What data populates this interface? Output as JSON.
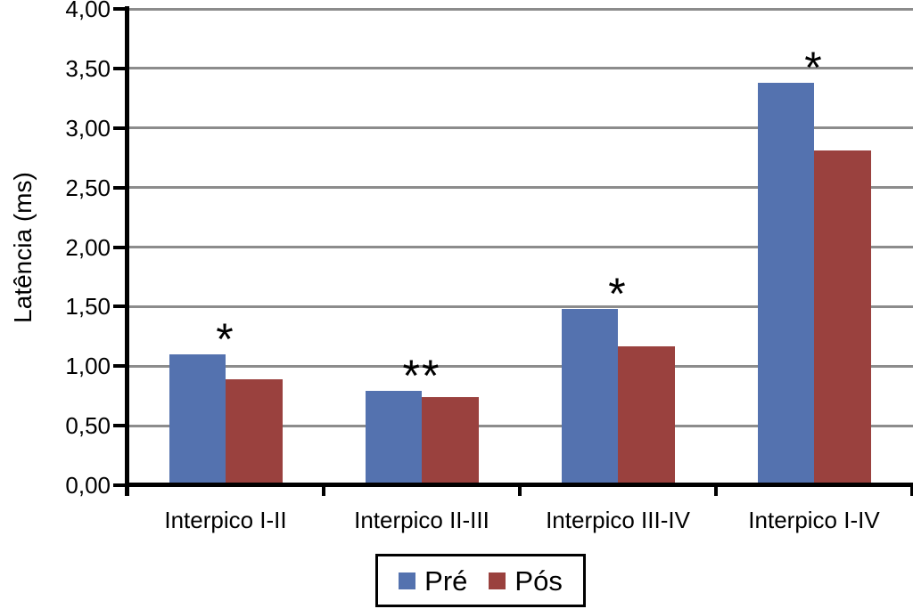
{
  "figure": {
    "background": "#FFFFFF"
  },
  "chart_data": {
    "type": "bar",
    "title": "",
    "xlabel": "",
    "ylabel": "Latência (ms)",
    "categories": [
      "Interpico I-II",
      "Interpico II-III",
      "Interpico III-IV",
      "Interpico I-IV"
    ],
    "series": [
      {
        "name": "Pré",
        "color": "#5472AF",
        "values": [
          1.1,
          0.79,
          1.48,
          3.38
        ]
      },
      {
        "name": "Pós",
        "color": "#9A413E",
        "values": [
          0.89,
          0.74,
          1.17,
          2.81
        ]
      }
    ],
    "annotations": [
      {
        "category": "Interpico I-II",
        "text": "*"
      },
      {
        "category": "Interpico II-III",
        "text": "**"
      },
      {
        "category": "Interpico III-IV",
        "text": "*"
      },
      {
        "category": "Interpico I-IV",
        "text": "*"
      }
    ],
    "ylim": [
      0,
      4
    ],
    "ytick_step": 0.5,
    "ytick_labels": [
      "0,00",
      "0,50",
      "1,00",
      "1,50",
      "2,00",
      "2,50",
      "3,00",
      "3,50",
      "4,00"
    ],
    "grid": true,
    "gridline_color": "#8C8C8C",
    "axis_color": "#000000",
    "legend_position": "bottom-center",
    "legend_border_color": "#000000"
  }
}
